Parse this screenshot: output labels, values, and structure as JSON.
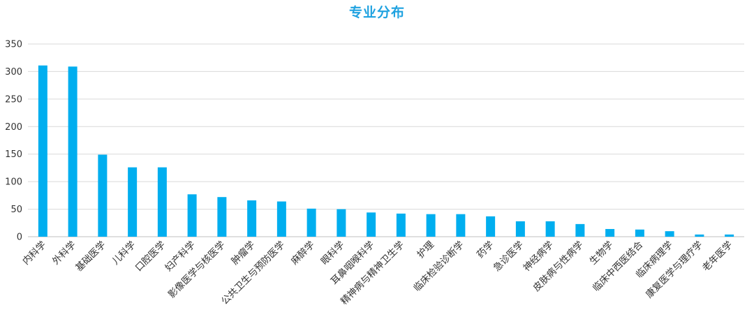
{
  "colors": {
    "bar": "#00AEEF",
    "title": "#1FA2E0",
    "grid": "#D9D9D9",
    "axis": "#BFBFBF",
    "text": "#333333"
  },
  "chart_data": {
    "type": "bar",
    "title": "专业分布",
    "xlabel": "",
    "ylabel": "",
    "ylim": [
      0,
      350
    ],
    "yticks": [
      0,
      50,
      100,
      150,
      200,
      250,
      300,
      350
    ],
    "grid": true,
    "legend": "none",
    "categories": [
      "内科学",
      "外科学",
      "基础医学",
      "儿科学",
      "口腔医学",
      "妇产科学",
      "影像医学与核医学",
      "肿瘤学",
      "公共卫生与预防医学",
      "麻醉学",
      "眼科学",
      "耳鼻咽喉科学",
      "精神病与精神卫生学",
      "护理",
      "临床检验诊断学",
      "药学",
      "急诊医学",
      "神经病学",
      "皮肤病与性病学",
      "生物学",
      "临床中西医结合",
      "临床病理学",
      "康复医学与理疗学",
      "老年医学"
    ],
    "values": [
      311,
      309,
      149,
      126,
      126,
      77,
      72,
      66,
      64,
      51,
      50,
      44,
      42,
      41,
      41,
      37,
      28,
      28,
      23,
      14,
      13,
      10,
      4,
      4
    ]
  }
}
